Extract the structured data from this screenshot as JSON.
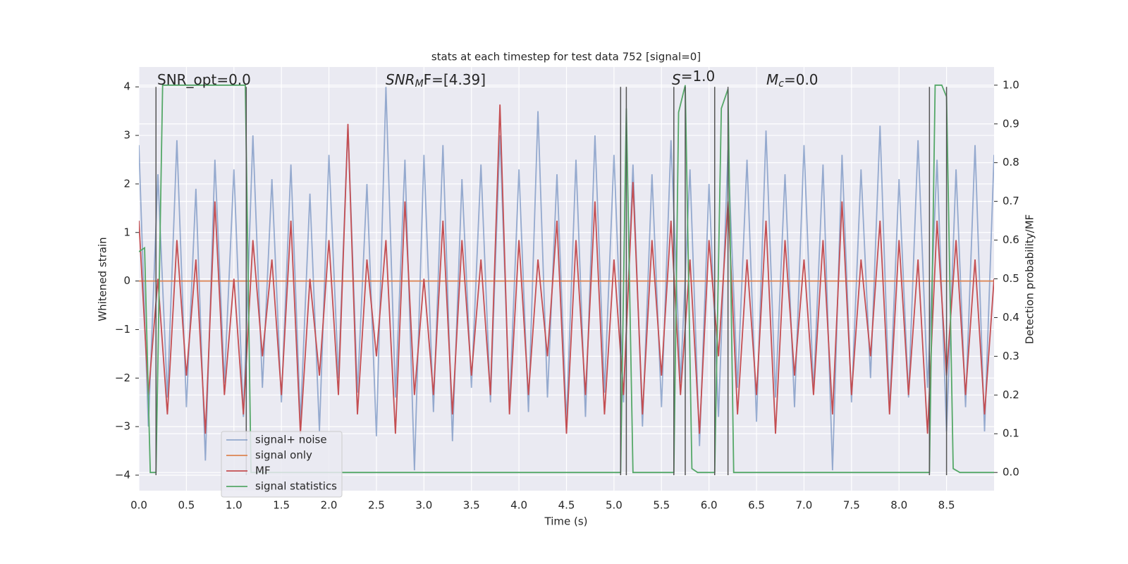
{
  "chart_data": {
    "type": "line",
    "title": "stats at each timestep for test data 752 [signal=0]",
    "x_label": "Time (s)",
    "y_label": "Whitened strain",
    "y2_label": "Detection probability/MF",
    "xlim": [
      0,
      9.0
    ],
    "ylim": [
      -4.32,
      4.41
    ],
    "y2lim": [
      -0.047,
      1.047
    ],
    "xticks": [
      {
        "value": 0,
        "label": "0.0"
      },
      0.5,
      {
        "value": 1,
        "label": "1.0"
      },
      1.5,
      {
        "value": 2,
        "label": "2.0"
      },
      2.5,
      {
        "value": 3,
        "label": "3.0"
      },
      3.5,
      {
        "value": 4,
        "label": "4.0"
      },
      4.5,
      {
        "value": 5,
        "label": "5.0"
      },
      5.5,
      {
        "value": 6,
        "label": "6.0"
      },
      6.5,
      {
        "value": 7,
        "label": "7.0"
      },
      7.5,
      {
        "value": 8,
        "label": "8.0"
      },
      8.5
    ],
    "yticks": [
      {
        "value": -4,
        "label": "−4"
      },
      {
        "value": -3,
        "label": "−3"
      },
      {
        "value": -2,
        "label": "−2"
      },
      {
        "value": -1,
        "label": "−1"
      },
      0,
      1,
      2,
      3,
      4
    ],
    "y2ticks": [
      {
        "value": 0,
        "label": "0.0"
      },
      0.1,
      0.2,
      0.3,
      0.4,
      0.5,
      0.6,
      0.7,
      0.8,
      0.9,
      {
        "value": 1,
        "label": "1.0"
      }
    ],
    "grid": true,
    "legend": "lower left",
    "annotations": [
      [
        "SNR_opt=0.0"
      ],
      [
        "SNR",
        "M",
        "F=[4.39]"
      ],
      [
        "S",
        "",
        "=1.0"
      ],
      [
        "M",
        "c",
        "=0.0"
      ]
    ],
    "vlines": {
      "x": [
        0.18,
        1.13,
        5.07,
        5.13,
        5.63,
        5.75,
        6.06,
        6.2,
        8.32,
        8.5
      ],
      "ymin": -4,
      "ymax": 4,
      "color": "#555555"
    },
    "x": [
      0.0,
      0.1,
      0.2,
      0.3,
      0.4,
      0.5,
      0.6,
      0.7,
      0.8,
      0.9,
      1.0,
      1.1,
      1.2,
      1.3,
      1.4,
      1.5,
      1.6,
      1.7,
      1.8,
      1.9,
      2.0,
      2.1,
      2.2,
      2.3,
      2.4,
      2.5,
      2.6,
      2.7,
      2.8,
      2.9,
      3.0,
      3.1,
      3.2,
      3.3,
      3.4,
      3.5,
      3.6,
      3.7,
      3.8,
      3.9,
      4.0,
      4.1,
      4.2,
      4.3,
      4.4,
      4.5,
      4.6,
      4.7,
      4.8,
      4.9,
      5.0,
      5.1,
      5.2,
      5.3,
      5.4,
      5.5,
      5.6,
      5.7,
      5.8,
      5.9,
      6.0,
      6.1,
      6.2,
      6.3,
      6.4,
      6.5,
      6.6,
      6.7,
      6.8,
      6.9,
      7.0,
      7.1,
      7.2,
      7.3,
      7.4,
      7.5,
      7.6,
      7.7,
      7.8,
      7.9,
      8.0,
      8.1,
      8.2,
      8.3,
      8.4,
      8.5,
      8.6,
      8.7,
      8.8,
      8.9,
      9.0
    ],
    "series": [
      {
        "name": "signal+ noise",
        "color": "#4c72b0",
        "axis": "y",
        "values": [
          2.8,
          -3.0,
          2.2,
          -2.4,
          2.9,
          -2.6,
          1.9,
          -3.7,
          2.5,
          -2.1,
          2.3,
          -2.8,
          3.0,
          -2.2,
          2.1,
          -2.5,
          2.4,
          -2.9,
          1.8,
          -3.1,
          2.6,
          -2.0,
          3.2,
          -2.3,
          2.0,
          -3.2,
          4.0,
          -2.4,
          2.5,
          -3.9,
          2.6,
          -2.7,
          2.8,
          -3.3,
          2.1,
          -2.2,
          2.4,
          -2.5,
          3.0,
          -2.6,
          2.3,
          -2.7,
          3.5,
          -2.4,
          2.2,
          -2.9,
          2.5,
          -2.8,
          3.0,
          -2.3,
          2.6,
          -2.5,
          2.4,
          -3.0,
          2.2,
          -2.6,
          2.9,
          -2.1,
          2.3,
          -3.4,
          2.0,
          -2.8,
          2.7,
          -2.2,
          2.5,
          -2.9,
          3.1,
          -2.4,
          2.2,
          -2.6,
          2.8,
          -2.3,
          2.4,
          -3.9,
          2.6,
          -2.5,
          2.3,
          -2.0,
          3.2,
          -2.7,
          2.1,
          -2.4,
          2.9,
          -2.2,
          2.5,
          -3.1,
          2.3,
          -2.6,
          2.8,
          -3.1,
          2.6
        ]
      },
      {
        "name": "signal only",
        "color": "#dd8452",
        "axis": "y",
        "x": [
          0,
          9.0
        ],
        "values": [
          0,
          0
        ]
      },
      {
        "name": "MF",
        "color": "#c44e52",
        "axis": "y2",
        "values": [
          0.65,
          0.2,
          0.5,
          0.15,
          0.6,
          0.25,
          0.55,
          0.1,
          0.7,
          0.2,
          0.5,
          0.15,
          0.6,
          0.3,
          0.55,
          0.2,
          0.65,
          0.1,
          0.5,
          0.25,
          0.6,
          0.2,
          0.9,
          0.15,
          0.55,
          0.3,
          0.6,
          0.1,
          0.7,
          0.2,
          0.5,
          0.2,
          0.65,
          0.15,
          0.6,
          0.25,
          0.55,
          0.2,
          0.95,
          0.15,
          0.6,
          0.2,
          0.55,
          0.3,
          0.65,
          0.1,
          0.6,
          0.2,
          0.7,
          0.15,
          0.55,
          0.2,
          0.75,
          0.15,
          0.6,
          0.25,
          0.65,
          0.2,
          0.55,
          0.1,
          0.6,
          0.3,
          0.7,
          0.15,
          0.55,
          0.2,
          0.65,
          0.1,
          0.6,
          0.25,
          0.55,
          0.2,
          0.6,
          0.15,
          0.7,
          0.2,
          0.55,
          0.3,
          0.65,
          0.15,
          0.6,
          0.2,
          0.55,
          0.1,
          0.65,
          0.25,
          0.6,
          0.2,
          0.55,
          0.15,
          0.5
        ]
      },
      {
        "name": "signal statistics",
        "color": "#55a868",
        "axis": "y2",
        "x": [
          0,
          0.06,
          0.12,
          0.18,
          0.25,
          0.31,
          0.5,
          0.75,
          1.0,
          1.12,
          1.18,
          1.25,
          1.5,
          2.0,
          3.0,
          4.0,
          5.0,
          5.07,
          5.13,
          5.2,
          5.3,
          5.5,
          5.63,
          5.68,
          5.75,
          5.82,
          5.88,
          6.0,
          6.06,
          6.13,
          6.2,
          6.26,
          6.5,
          7.0,
          8.0,
          8.32,
          8.38,
          8.45,
          8.5,
          8.57,
          8.64,
          9.0
        ],
        "values": [
          0.57,
          0.58,
          0.0,
          0.0,
          1.0,
          1.0,
          1.0,
          1.0,
          1.0,
          1.0,
          0.0,
          0.0,
          0.0,
          0.0,
          0.0,
          0.0,
          0.0,
          0.0,
          0.94,
          0.0,
          0.0,
          0.0,
          0.0,
          0.93,
          1.0,
          0.01,
          0.0,
          0.0,
          0.0,
          0.94,
          0.99,
          0.0,
          0.0,
          0.0,
          0.0,
          0.0,
          1.0,
          1.0,
          0.97,
          0.01,
          0.0,
          0.0
        ]
      }
    ]
  }
}
